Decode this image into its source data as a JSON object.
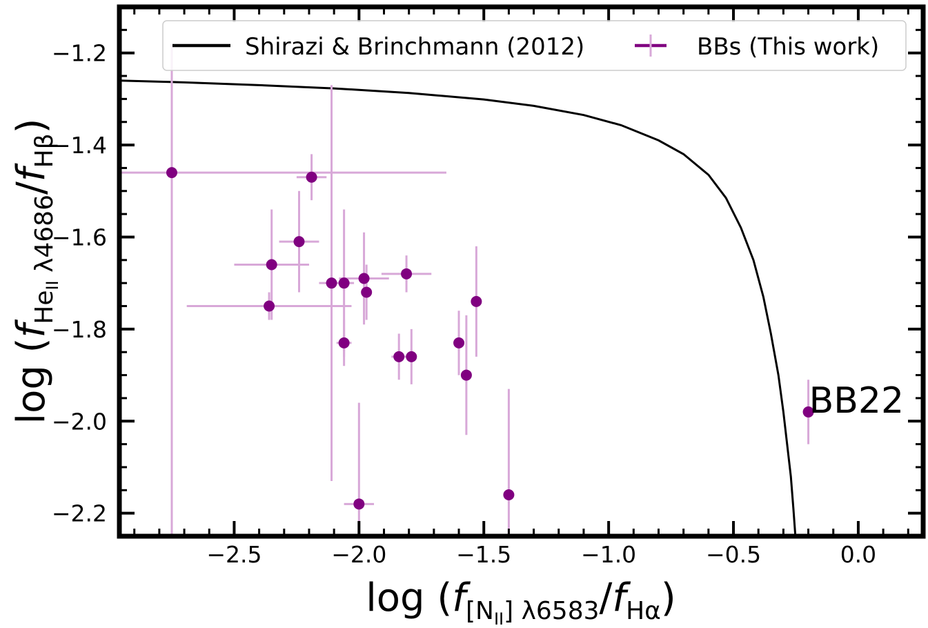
{
  "chart_data": {
    "type": "scatter",
    "xlabel": {
      "prefix": "log (",
      "f": "f",
      "num_sub": "[N",
      "num_sub_ion": "II",
      "num_sub_rest": "] λ6583",
      "slash": "/",
      "den_f": "f",
      "den_sub": "Hα",
      "suffix": ")"
    },
    "ylabel": {
      "prefix": "log (",
      "f": "f",
      "num_sub": "He",
      "num_sub_ion": "II",
      "num_sub_rest": " λ4686",
      "slash": "/",
      "den_f": "f",
      "den_sub": "Hβ",
      "suffix": ")"
    },
    "xlim": [
      -2.96,
      0.26
    ],
    "ylim": [
      -2.25,
      -1.1
    ],
    "xticks": [
      -2.5,
      -2.0,
      -1.5,
      -1.0,
      -0.5,
      0.0
    ],
    "xtick_labels": [
      "−2.5",
      "−2.0",
      "−1.5",
      "−1.0",
      "−0.5",
      "0.0"
    ],
    "yticks": [
      -1.2,
      -1.4,
      -1.6,
      -1.8,
      -2.0,
      -2.2
    ],
    "ytick_labels": [
      "−1.2",
      "−1.4",
      "−1.6",
      "−1.8",
      "−2.0",
      "−2.2"
    ],
    "legend": {
      "position": "top",
      "entries": [
        {
          "label": "Shirazi & Brinchmann (2012)",
          "kind": "line"
        },
        {
          "label": "BBs (This work)",
          "kind": "errorbar"
        }
      ]
    },
    "colors": {
      "curve": "#000000",
      "points": "#800080",
      "errorbars": "#d8a8d8"
    },
    "curve": {
      "name": "Shirazi & Brinchmann (2012)",
      "x": [
        -2.96,
        -2.7,
        -2.4,
        -2.1,
        -1.8,
        -1.5,
        -1.3,
        -1.1,
        -0.95,
        -0.8,
        -0.7,
        -0.6,
        -0.53,
        -0.47,
        -0.42,
        -0.38,
        -0.35,
        -0.32,
        -0.3,
        -0.285,
        -0.27,
        -0.26,
        -0.252
      ],
      "y": [
        -1.26,
        -1.264,
        -1.27,
        -1.277,
        -1.287,
        -1.301,
        -1.315,
        -1.335,
        -1.357,
        -1.39,
        -1.42,
        -1.465,
        -1.515,
        -1.58,
        -1.65,
        -1.73,
        -1.81,
        -1.9,
        -1.98,
        -2.05,
        -2.12,
        -2.19,
        -2.25
      ]
    },
    "series": [
      {
        "name": "BBs (This work)",
        "points": [
          {
            "x": -2.75,
            "y": -1.46,
            "xerr": [
              0.25,
              1.1
            ],
            "yerr": [
              0.85,
              0.28
            ]
          },
          {
            "x": -2.19,
            "y": -1.47,
            "xerr": [
              0.06,
              0.06
            ],
            "yerr": [
              0.05,
              0.05
            ]
          },
          {
            "x": -2.24,
            "y": -1.61,
            "xerr": [
              0.08,
              0.08
            ],
            "yerr": [
              0.11,
              0.11
            ]
          },
          {
            "x": -2.35,
            "y": -1.66,
            "xerr": [
              0.15,
              0.15
            ],
            "yerr": [
              0.12,
              0.12
            ]
          },
          {
            "x": -2.36,
            "y": -1.75,
            "xerr": [
              0.33,
              0.33
            ],
            "yerr": [
              0.03,
              0.03
            ]
          },
          {
            "x": -2.11,
            "y": -1.7,
            "xerr": [
              0.05,
              0.05
            ],
            "yerr": [
              0.43,
              0.43
            ]
          },
          {
            "x": -2.06,
            "y": -1.7,
            "xerr": [
              0.04,
              0.04
            ],
            "yerr": [
              0.16,
              0.16
            ]
          },
          {
            "x": -2.06,
            "y": -1.83,
            "xerr": [
              0.03,
              0.03
            ],
            "yerr": [
              0.05,
              0.05
            ]
          },
          {
            "x": -1.98,
            "y": -1.69,
            "xerr": [
              0.1,
              0.1
            ],
            "yerr": [
              0.1,
              0.1
            ]
          },
          {
            "x": -1.97,
            "y": -1.72,
            "xerr": [
              0.02,
              0.02
            ],
            "yerr": [
              0.06,
              0.06
            ]
          },
          {
            "x": -2.0,
            "y": -2.18,
            "xerr": [
              0.06,
              0.06
            ],
            "yerr": [
              0.22,
              0.22
            ]
          },
          {
            "x": -1.81,
            "y": -1.68,
            "xerr": [
              0.1,
              0.1
            ],
            "yerr": [
              0.04,
              0.04
            ]
          },
          {
            "x": -1.84,
            "y": -1.86,
            "xerr": [
              0.03,
              0.03
            ],
            "yerr": [
              0.05,
              0.05
            ]
          },
          {
            "x": -1.79,
            "y": -1.86,
            "xerr": [
              0.02,
              0.02
            ],
            "yerr": [
              0.06,
              0.06
            ]
          },
          {
            "x": -1.6,
            "y": -1.83,
            "xerr": [
              0.02,
              0.02
            ],
            "yerr": [
              0.07,
              0.07
            ]
          },
          {
            "x": -1.57,
            "y": -1.9,
            "xerr": [
              0.02,
              0.02
            ],
            "yerr": [
              0.13,
              0.13
            ]
          },
          {
            "x": -1.53,
            "y": -1.74,
            "xerr": [
              0.02,
              0.02
            ],
            "yerr": [
              0.12,
              0.12
            ]
          },
          {
            "x": -1.4,
            "y": -2.16,
            "xerr": [
              0.02,
              0.02
            ],
            "yerr": [
              0.23,
              0.23
            ]
          },
          {
            "x": -0.2,
            "y": -1.98,
            "xerr": [
              0.0,
              0.0
            ],
            "yerr": [
              0.07,
              0.07
            ]
          }
        ]
      }
    ],
    "annotations": [
      {
        "text": "BB22",
        "x": -0.2,
        "y": -1.98
      }
    ]
  }
}
